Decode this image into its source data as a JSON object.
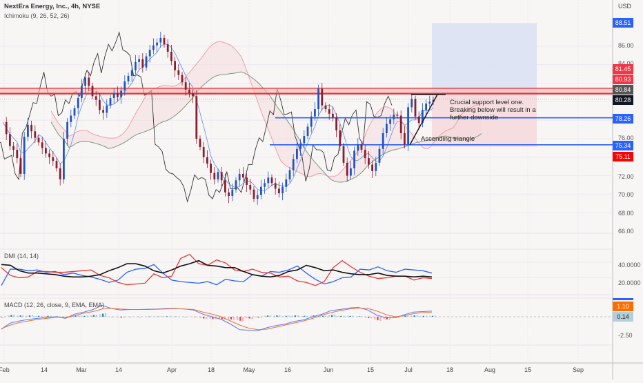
{
  "header": {
    "title": "NextEra Energy, Inc., 4h, NYSE",
    "indicator": "Ichimoku (9, 26, 52, 26)"
  },
  "panes": {
    "dmi_label": "DMI (14, 14)",
    "macd_label": "MACD (12, 26, close, 9, EMA, EMA)"
  },
  "price_axis": {
    "currency": "USD",
    "ticks": [
      "86.00",
      "84.00",
      "76.00",
      "72.00",
      "70.00",
      "68.00",
      "66.00"
    ],
    "tags": [
      {
        "value": "88.51",
        "color": "#2962ff"
      },
      {
        "value": "81.45",
        "color": "#f23645"
      },
      {
        "value": "80.93",
        "color": "#f23645"
      },
      {
        "value": "80.84",
        "color": "#555555"
      },
      {
        "value": "80.28",
        "color": "#131722"
      },
      {
        "value": "78.26",
        "color": "#2962ff"
      },
      {
        "value": "75.34",
        "color": "#2962ff"
      },
      {
        "value": "75.11",
        "color": "#ff0000"
      }
    ]
  },
  "dmi_axis": {
    "ticks": [
      "40.0000",
      "20.0000"
    ]
  },
  "macd_axis": {
    "ticks": [
      "-2.50"
    ],
    "tags": [
      {
        "value": "1.10",
        "color": "#ff6d00"
      },
      {
        "value": "0.14",
        "color": "#b2cfdc"
      }
    ]
  },
  "time_axis": {
    "labels": [
      "Feb",
      "14",
      "Mar",
      "14",
      "Apr",
      "18",
      "May",
      "16",
      "Jun",
      "15",
      "Jul",
      "18",
      "Aug",
      "15",
      "Sep"
    ]
  },
  "annotations": {
    "support_note_1": "Crucial support level one.",
    "support_note_2": "Breaking below will result in a",
    "support_note_3": "further downside",
    "triangle_label": "Ascending triangle"
  },
  "colors": {
    "up": "#2154c2",
    "down": "#8b1e2e",
    "resistance": "#e53935",
    "support": "#2962ff",
    "target_zone": "#dbe1f5",
    "stop_zone": "#f6d9dc"
  },
  "chart_data": {
    "type": "candlestick",
    "title": "NextEra Energy, Inc., 4h, NYSE",
    "ylabel": "USD",
    "ylim": [
      65.5,
      89.5
    ],
    "x_labels": [
      "Feb",
      "14",
      "Mar",
      "14",
      "Apr",
      "18",
      "May",
      "16",
      "Jun",
      "15",
      "Jul",
      "18",
      "Aug",
      "15",
      "Sep"
    ],
    "close_path": [
      77.8,
      76.5,
      75.2,
      74.8,
      73.9,
      72.2,
      76.2,
      77.5,
      76.8,
      76.1,
      75.6,
      75.0,
      74.4,
      74.0,
      73.6,
      72.8,
      71.6,
      76.0,
      77.8,
      78.5,
      79.3,
      80.4,
      81.7,
      82.6,
      81.7,
      80.6,
      80.2,
      79.1,
      78.8,
      79.6,
      80.4,
      80.9,
      80.5,
      81.2,
      82.2,
      82.8,
      83.4,
      84.3,
      84.6,
      83.7,
      84.9,
      85.6,
      86.1,
      86.4,
      86.9,
      86.2,
      85.4,
      84.4,
      83.4,
      82.9,
      82.1,
      81.3,
      80.9,
      80.6,
      76.0,
      75.1,
      74.0,
      73.3,
      72.3,
      71.6,
      72.4,
      71.5,
      70.2,
      69.8,
      70.5,
      71.5,
      72.2,
      71.8,
      71.0,
      70.5,
      69.5,
      69.9,
      70.8,
      71.2,
      71.8,
      71.2,
      70.6,
      70.1,
      70.8,
      71.6,
      72.6,
      73.8,
      74.9,
      75.5,
      76.3,
      77.3,
      78.4,
      79.2,
      81.4,
      79.6,
      79.2,
      78.7,
      78.3,
      76.9,
      75.2,
      73.4,
      72.0,
      72.8,
      74.7,
      75.4,
      74.8,
      73.9,
      73.2,
      72.5,
      73.4,
      74.9,
      76.6,
      77.6,
      78.1,
      78.6,
      78.5,
      76.6,
      75.4,
      79.4,
      80.3,
      78.4,
      77.7,
      79.1,
      79.8,
      80.0,
      80.2
    ],
    "horizontal_levels": [
      {
        "label": "resistance_top",
        "value": 81.45
      },
      {
        "label": "resistance_mid",
        "value": 80.93
      },
      {
        "label": "resistance_low",
        "value": 80.84
      },
      {
        "label": "last_price",
        "value": 80.28
      },
      {
        "label": "support_1",
        "value": 78.26
      },
      {
        "label": "support_2",
        "value": 75.34
      }
    ],
    "position": {
      "entry": 80.84,
      "target": 88.51,
      "stop": 75.11
    },
    "dmi": {
      "range": [
        0,
        55
      ],
      "ticks": [
        40,
        20
      ],
      "plus_di": [
        10,
        31,
        31,
        29,
        30,
        27,
        28,
        24,
        26,
        23,
        21,
        18,
        14,
        17,
        27,
        31,
        32,
        37,
        26,
        17,
        15,
        14,
        13,
        15,
        11,
        18,
        16,
        15,
        24,
        22,
        28,
        27,
        30,
        35,
        26,
        18,
        12,
        15,
        20,
        21,
        31,
        30,
        34,
        29,
        27,
        31,
        30,
        29,
        26
      ],
      "minus_di": [
        33,
        23,
        20,
        21,
        28,
        28,
        27,
        27,
        28,
        29,
        30,
        23,
        20,
        14,
        11,
        12,
        13,
        25,
        20,
        22,
        45,
        50,
        38,
        36,
        43,
        39,
        30,
        28,
        31,
        27,
        26,
        21,
        22,
        16,
        14,
        10,
        15,
        33,
        42,
        34,
        27,
        22,
        19,
        20,
        22,
        22,
        17,
        20,
        19
      ],
      "adx": [
        37,
        36,
        29,
        26,
        26,
        25,
        24,
        22,
        21,
        21,
        22,
        24,
        29,
        33,
        38,
        38,
        35,
        29,
        26,
        30,
        35,
        38,
        42,
        36,
        35,
        33,
        33,
        28,
        24,
        22,
        21,
        23,
        28,
        30,
        36,
        33,
        29,
        30,
        27,
        25,
        24,
        24,
        26,
        23,
        22,
        22,
        21,
        22,
        21
      ]
    },
    "macd": {
      "zero_line_y": 459,
      "macd_line": [
        -2.4,
        -1.2,
        -0.8,
        -0.5,
        -0.3,
        -0.1,
        0.0,
        -0.3,
        0.5,
        0.9,
        1.4,
        2.2,
        1.6,
        1.3,
        1.4,
        1.4,
        1.45,
        1.5,
        1.6,
        1.6,
        1.5,
        1.3,
        0.5,
        0.0,
        -0.5,
        -1.4,
        -2.5,
        -2.6,
        -2.7,
        -2.1,
        -1.7,
        -1.4,
        -0.9,
        -0.6,
        0.0,
        0.5,
        1.2,
        1.4,
        1.7,
        1.8,
        1.3,
        0.3,
        -0.2,
        -0.2,
        0.4,
        0.9,
        1.0,
        1.1
      ],
      "signal_line": [
        -2.3,
        -1.6,
        -1.1,
        -0.8,
        -0.5,
        -0.3,
        -0.1,
        -0.1,
        0.2,
        0.7,
        1.0,
        1.5,
        1.6,
        1.5,
        1.4,
        1.4,
        1.4,
        1.45,
        1.5,
        1.55,
        1.5,
        1.4,
        0.9,
        0.5,
        0.0,
        -0.8,
        -1.6,
        -2.2,
        -2.5,
        -2.4,
        -2.0,
        -1.6,
        -1.2,
        -0.8,
        -0.3,
        0.3,
        0.8,
        1.2,
        1.5,
        1.7,
        1.6,
        1.1,
        0.4,
        0.0,
        0.2,
        0.6,
        0.8,
        0.9
      ]
    }
  }
}
